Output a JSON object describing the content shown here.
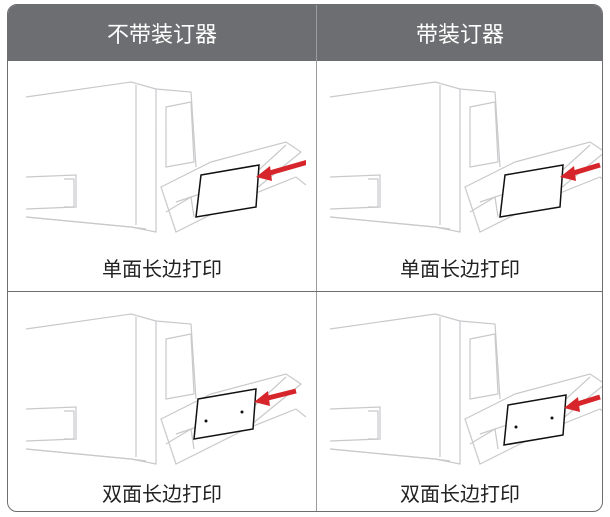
{
  "table": {
    "header": [
      "不带装订器",
      "带装订器"
    ],
    "rows": [
      [
        "单面长边打印",
        "单面长边打印"
      ],
      [
        "双面长边打印",
        "双面长边打印"
      ]
    ]
  }
}
